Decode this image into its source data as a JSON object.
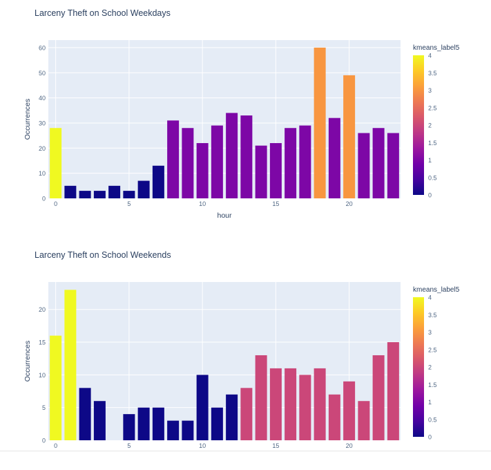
{
  "colorscale": [
    "#0d0887",
    "#46039f",
    "#7201a8",
    "#9c179e",
    "#bd3786",
    "#d8576b",
    "#ed7953",
    "#fb9f3a",
    "#fdca26",
    "#f0f921"
  ],
  "plot_bg": "#e5ecf6",
  "chart_data": [
    {
      "type": "bar",
      "title": "Larceny Theft on School Weekdays",
      "xlabel": "hour",
      "ylabel": "Occurrences",
      "x": [
        0,
        1,
        2,
        3,
        4,
        5,
        6,
        7,
        8,
        9,
        10,
        11,
        12,
        13,
        14,
        15,
        16,
        17,
        18,
        19,
        20,
        21,
        22,
        23
      ],
      "values": [
        28,
        5,
        3,
        3,
        5,
        3,
        7,
        13,
        31,
        28,
        22,
        29,
        34,
        33,
        21,
        22,
        28,
        29,
        60,
        32,
        49,
        26,
        28,
        26
      ],
      "color_values": [
        4,
        0,
        0,
        0,
        0,
        0,
        0,
        0,
        1,
        1,
        1,
        1,
        1,
        1,
        1,
        1,
        1,
        1,
        3,
        1,
        3,
        1,
        1,
        1
      ],
      "xlim": [
        -0.5,
        23.5
      ],
      "ylim": [
        0,
        63
      ],
      "yticks": [
        0,
        10,
        20,
        30,
        40,
        50,
        60
      ],
      "xticks": [
        0,
        5,
        10,
        15,
        20
      ],
      "colorbar": {
        "title": "kmeans_label5",
        "range": [
          0,
          4
        ],
        "ticks": [
          "0",
          "0.5",
          "1",
          "1.5",
          "2",
          "2.5",
          "3",
          "3.5",
          "4"
        ]
      }
    },
    {
      "type": "bar",
      "title": "Larceny Theft on School Weekends",
      "xlabel": "",
      "ylabel": "Occurrences",
      "x": [
        0,
        1,
        2,
        3,
        5,
        6,
        7,
        8,
        9,
        10,
        11,
        12,
        13,
        14,
        15,
        16,
        17,
        18,
        19,
        20,
        21,
        22,
        23
      ],
      "values": [
        16,
        23,
        8,
        6,
        4,
        5,
        5,
        3,
        3,
        10,
        5,
        7,
        8,
        13,
        11,
        11,
        10,
        11,
        7,
        9,
        6,
        13,
        15
      ],
      "color_values": [
        4,
        4,
        0,
        0,
        0,
        0,
        0,
        0,
        0,
        0,
        0,
        0,
        2,
        2,
        2,
        2,
        2,
        2,
        2,
        2,
        2,
        2,
        2
      ],
      "xlim": [
        -0.5,
        23.5
      ],
      "ylim": [
        0,
        24.2
      ],
      "yticks": [
        0,
        5,
        10,
        15,
        20
      ],
      "xticks": [
        0,
        5,
        10,
        15,
        20
      ],
      "colorbar": {
        "title": "kmeans_label5",
        "range": [
          0,
          4
        ],
        "ticks": [
          "0",
          "0.5",
          "1",
          "1.5",
          "2",
          "2.5",
          "3",
          "3.5",
          "4"
        ]
      }
    }
  ]
}
